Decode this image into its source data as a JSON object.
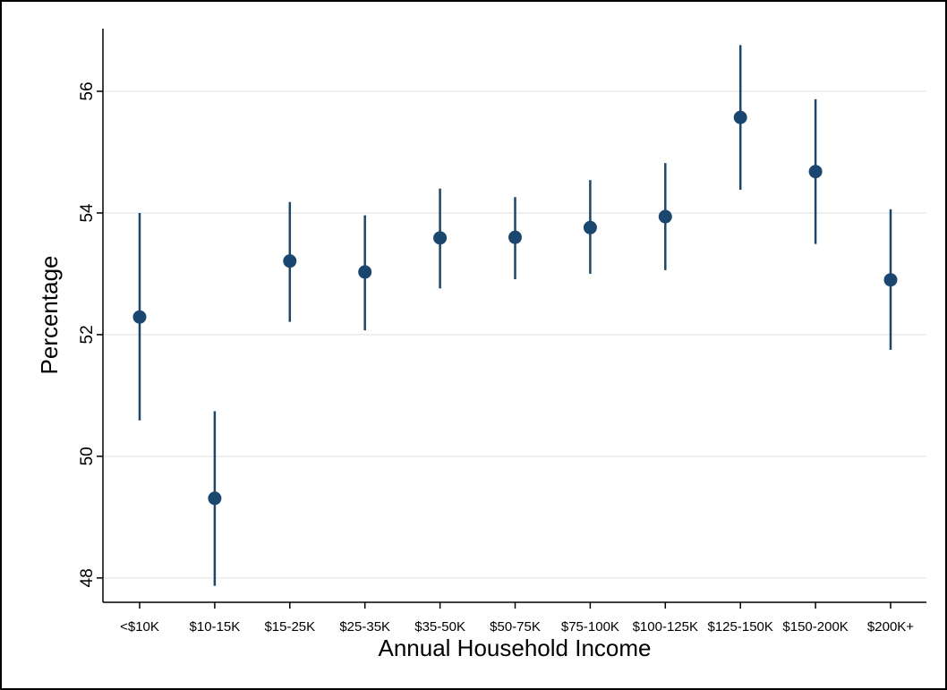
{
  "chart_data": {
    "type": "errorbar",
    "x_label": "Annual Household Income",
    "y_label": "Percentage",
    "categories": [
      "<$10K",
      "$10-15K",
      "$15-25K",
      "$25-35K",
      "$35-50K",
      "$50-75K",
      "$75-100K",
      "$100-125K",
      "$125-150K",
      "$150-200K",
      "$200K+"
    ],
    "values": [
      52.29,
      49.31,
      53.21,
      53.03,
      53.59,
      53.6,
      53.76,
      53.94,
      55.57,
      54.68,
      52.9
    ],
    "lower": [
      50.59,
      47.87,
      52.21,
      52.07,
      52.76,
      52.91,
      53.0,
      53.06,
      54.38,
      53.49,
      51.75
    ],
    "upper": [
      54.0,
      50.74,
      54.18,
      53.96,
      54.4,
      54.26,
      54.54,
      54.82,
      56.76,
      55.87,
      54.06
    ],
    "color": "#1a476f",
    "ylim": [
      47.6,
      57.03
    ],
    "yticks": [
      48,
      50,
      52,
      54,
      56
    ],
    "grid": true
  }
}
